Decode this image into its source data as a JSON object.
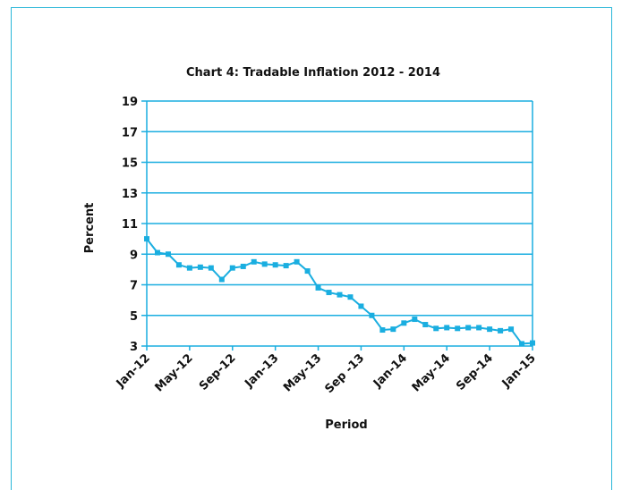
{
  "chart_data": {
    "type": "line",
    "title": "Chart 4: Tradable Inflation 2012 - 2014",
    "xlabel": "Period",
    "ylabel": "Percent",
    "ylim": [
      3,
      19
    ],
    "yticks": [
      3,
      5,
      7,
      9,
      11,
      13,
      15,
      17,
      19
    ],
    "xtick_labels": [
      "Jan-12",
      "May-12",
      "Sep-12",
      "Jan-13",
      "May-13",
      "Sep -13",
      "Jan-14",
      "May-14",
      "Sep-14",
      "Jan-15"
    ],
    "grid": "horizontal",
    "color": "#1aaee0",
    "marker": "square",
    "series": [
      {
        "x": [
          "Jan-12",
          "Feb-12",
          "Mar-12",
          "Apr-12",
          "May-12",
          "Jun-12",
          "Jul-12",
          "Aug-12",
          "Sep-12",
          "Oct-12",
          "Nov-12",
          "Dec-12",
          "Jan-13",
          "Feb-13",
          "Mar-13",
          "Apr-13",
          "May-13",
          "Jun-13",
          "Jul-13",
          "Aug-13",
          "Sep-13",
          "Oct-13",
          "Nov-13",
          "Dec-13",
          "Jan-14",
          "Feb-14",
          "Mar-14",
          "Apr-14",
          "May-14",
          "Jun-14",
          "Jul-14",
          "Aug-14",
          "Sep-14",
          "Oct-14",
          "Nov-14",
          "Dec-14",
          "Jan-15"
        ],
        "values": [
          10.0,
          9.1,
          9.0,
          8.3,
          8.1,
          8.15,
          8.1,
          7.35,
          8.1,
          8.2,
          8.5,
          8.35,
          8.3,
          8.25,
          8.5,
          7.9,
          6.8,
          6.5,
          6.35,
          6.2,
          5.6,
          5.0,
          4.05,
          4.1,
          4.5,
          4.75,
          4.4,
          4.15,
          4.2,
          4.15,
          4.2,
          4.2,
          4.1,
          4.0,
          4.1,
          3.15,
          3.2
        ]
      }
    ]
  }
}
